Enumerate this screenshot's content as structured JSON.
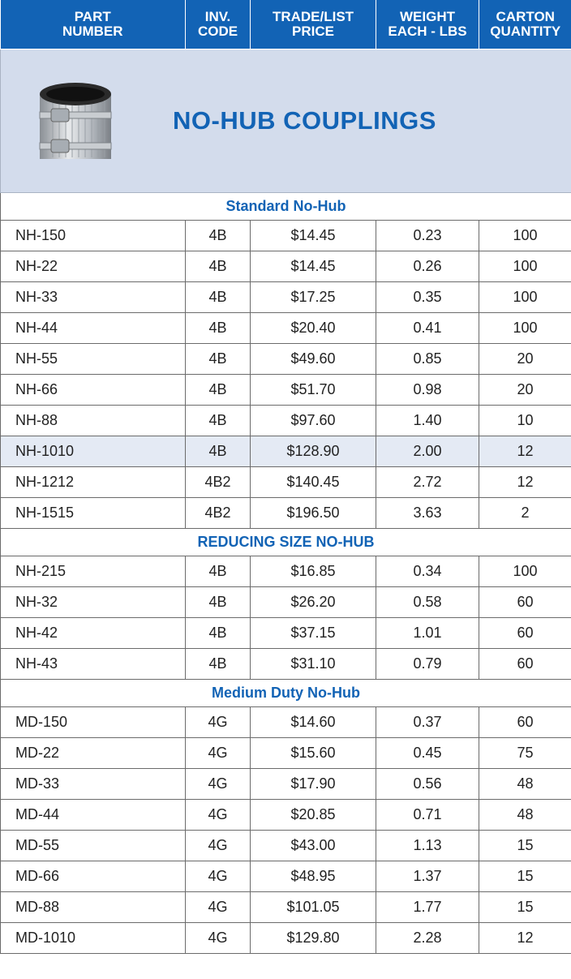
{
  "header": {
    "columns": [
      [
        "PART",
        "NUMBER"
      ],
      [
        "INV.",
        "CODE"
      ],
      [
        "TRADE/LIST",
        "PRICE"
      ],
      [
        "WEIGHT",
        "EACH - LBS"
      ],
      [
        "CARTON",
        "QUANTITY"
      ]
    ]
  },
  "banner": {
    "title": "NO-HUB COUPLINGS"
  },
  "sections": [
    {
      "title": "Standard No-Hub",
      "rows": [
        [
          "NH-150",
          "4B",
          "$14.45",
          "0.23",
          "100"
        ],
        [
          "NH-22",
          "4B",
          "$14.45",
          "0.26",
          "100"
        ],
        [
          "NH-33",
          "4B",
          "$17.25",
          "0.35",
          "100"
        ],
        [
          "NH-44",
          "4B",
          "$20.40",
          "0.41",
          "100"
        ],
        [
          "NH-55",
          "4B",
          "$49.60",
          "0.85",
          "20"
        ],
        [
          "NH-66",
          "4B",
          "$51.70",
          "0.98",
          "20"
        ],
        [
          "NH-88",
          "4B",
          "$97.60",
          "1.40",
          "10"
        ],
        [
          "NH-1010",
          "4B",
          "$128.90",
          "2.00",
          "12"
        ],
        [
          "NH-1212",
          "4B2",
          "$140.45",
          "2.72",
          "12"
        ],
        [
          "NH-1515",
          "4B2",
          "$196.50",
          "3.63",
          "2"
        ]
      ]
    },
    {
      "title": "REDUCING SIZE NO-HUB",
      "rows": [
        [
          "NH-215",
          "4B",
          "$16.85",
          "0.34",
          "100"
        ],
        [
          "NH-32",
          "4B",
          "$26.20",
          "0.58",
          "60"
        ],
        [
          "NH-42",
          "4B",
          "$37.15",
          "1.01",
          "60"
        ],
        [
          "NH-43",
          "4B",
          "$31.10",
          "0.79",
          "60"
        ]
      ]
    },
    {
      "title": "Medium Duty No-Hub",
      "rows": [
        [
          "MD-150",
          "4G",
          "$14.60",
          "0.37",
          "60"
        ],
        [
          "MD-22",
          "4G",
          "$15.60",
          "0.45",
          "75"
        ],
        [
          "MD-33",
          "4G",
          "$17.90",
          "0.56",
          "48"
        ],
        [
          "MD-44",
          "4G",
          "$20.85",
          "0.71",
          "48"
        ],
        [
          "MD-55",
          "4G",
          "$43.00",
          "1.13",
          "15"
        ],
        [
          "MD-66",
          "4G",
          "$48.95",
          "1.37",
          "15"
        ],
        [
          "MD-88",
          "4G",
          "$101.05",
          "1.77",
          "15"
        ],
        [
          "MD-1010",
          "4G",
          "$129.80",
          "2.28",
          "12"
        ]
      ]
    }
  ]
}
